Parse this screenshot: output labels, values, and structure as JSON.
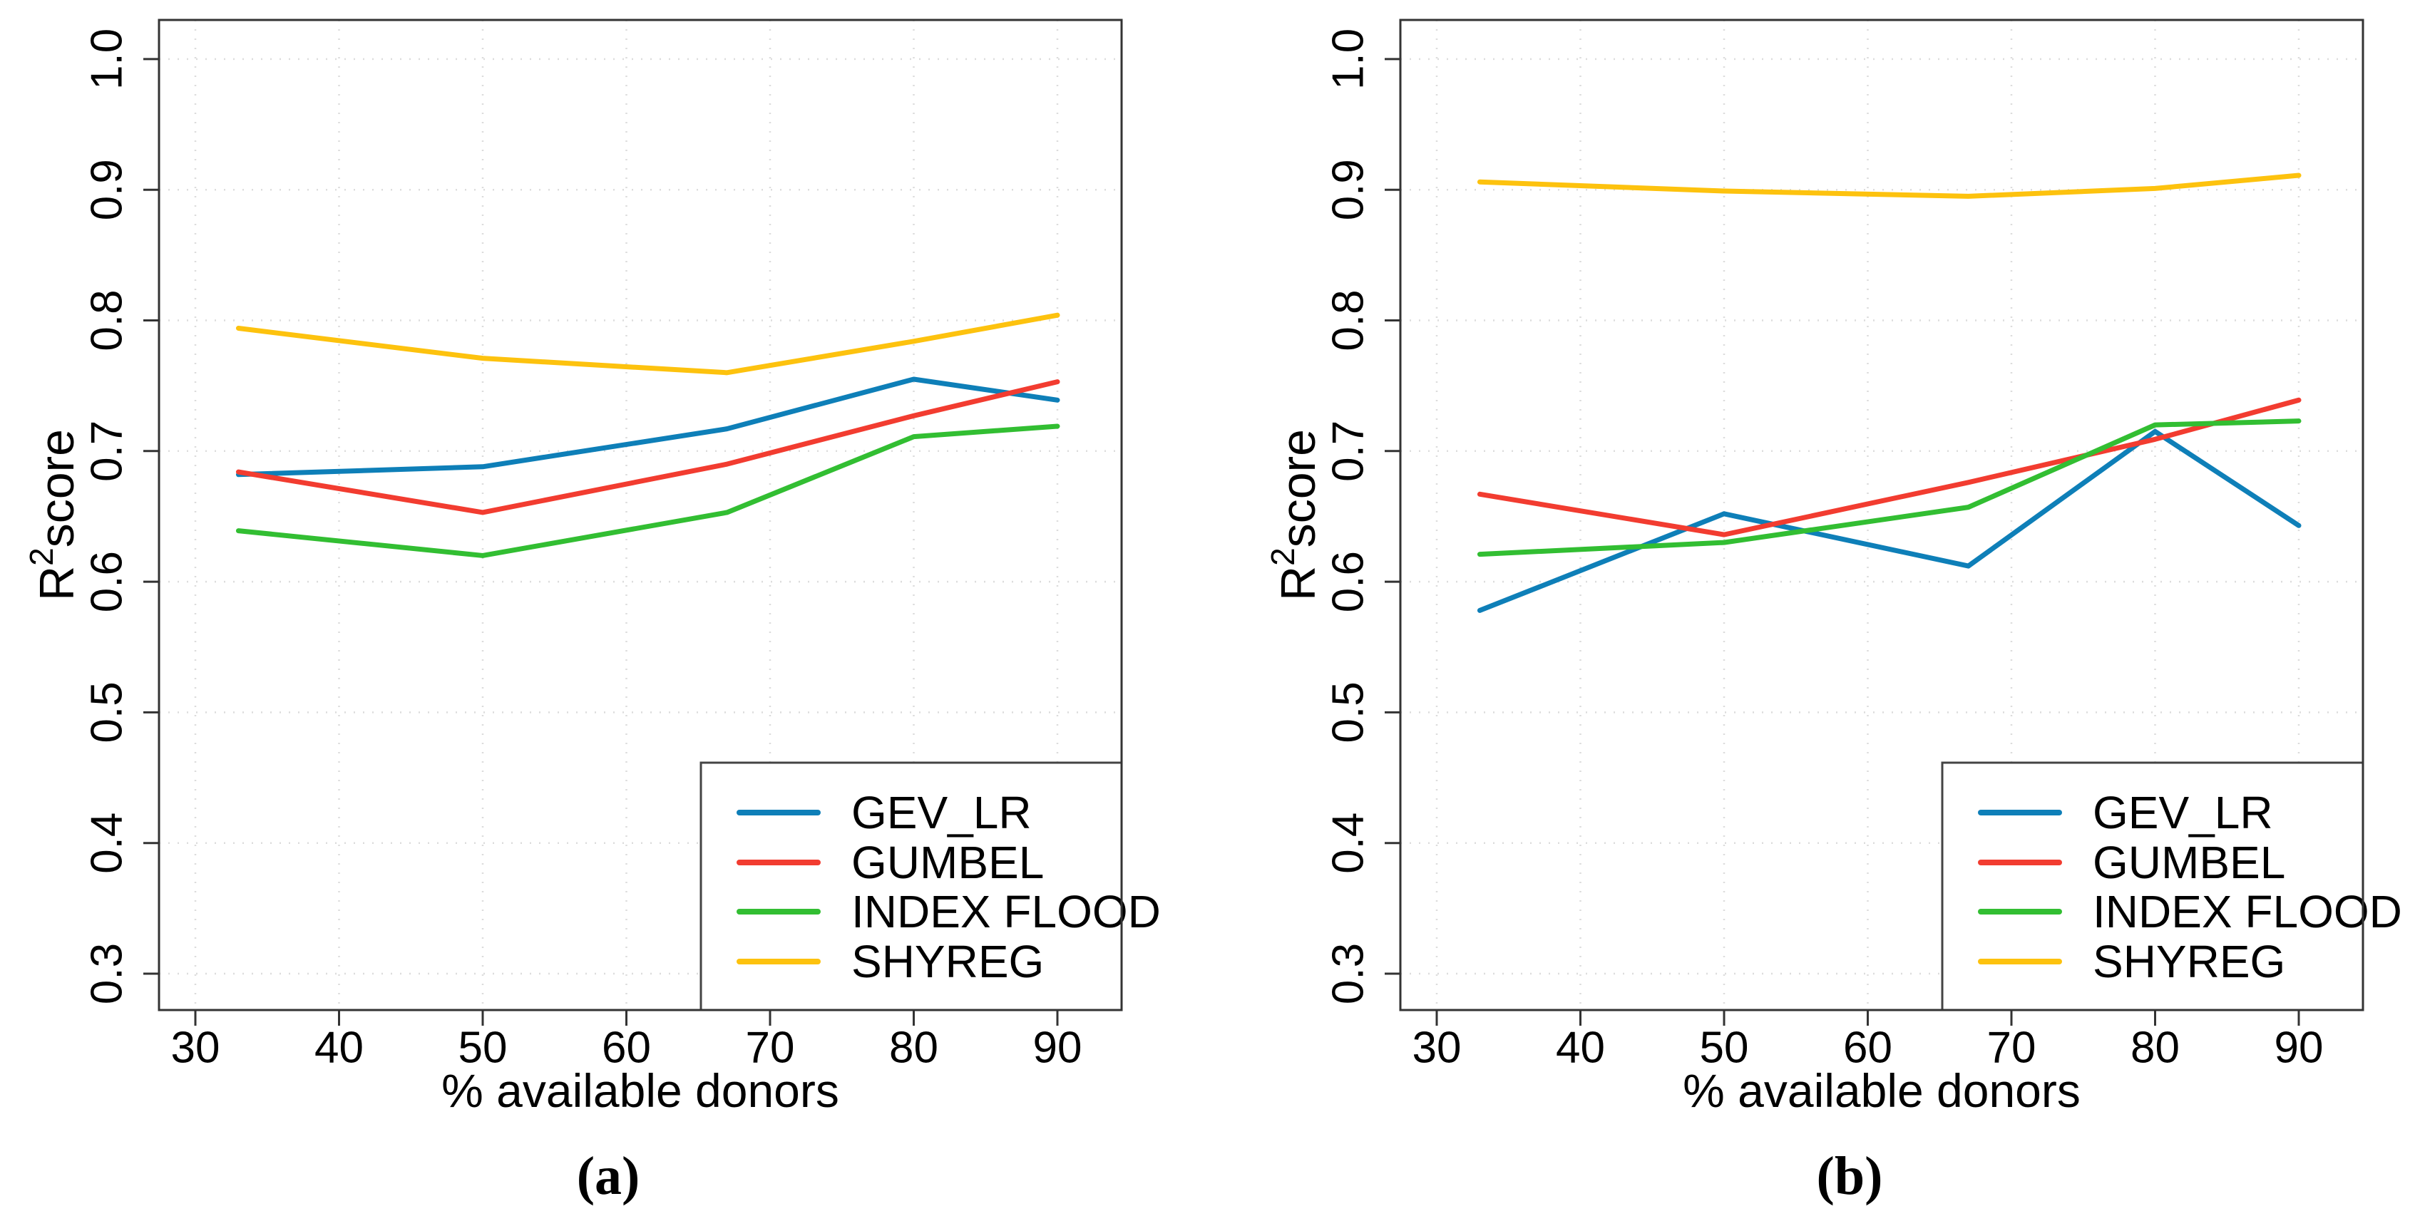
{
  "figure": {
    "background": "#ffffff",
    "axis_color": "#333333",
    "grid_color": "#dcdcdc",
    "legend_border_color": "#444444",
    "xlabel": "% available donors",
    "ylabel": {
      "base": "R",
      "sup": "2",
      "rest": "score"
    },
    "captions": [
      "(a)",
      "(b)"
    ],
    "yticks": [
      "1.0",
      "0.9",
      "0.8",
      "0.7",
      "0.6",
      "0.5",
      "0.4",
      "0.3"
    ],
    "xticks": [
      "30",
      "40",
      "50",
      "60",
      "70",
      "80",
      "90"
    ]
  },
  "chart_data": [
    {
      "type": "line",
      "panel": "a",
      "title": "",
      "xlabel": "% available donors",
      "ylabel": "R2 score",
      "x": [
        33,
        50,
        67,
        80,
        90
      ],
      "xticks": [
        30,
        40,
        50,
        60,
        70,
        80,
        90
      ],
      "yticks": [
        0.3,
        0.4,
        0.5,
        0.6,
        0.7,
        0.8,
        0.9,
        1.0
      ],
      "xlim": [
        27.5,
        94.5
      ],
      "ylim": [
        0.272,
        1.03
      ],
      "grid": true,
      "legend_position": "bottom-right",
      "series": [
        {
          "name": "GEV_LR",
          "color": "#0e7fb8",
          "values": [
            0.682,
            0.688,
            0.717,
            0.755,
            0.739
          ]
        },
        {
          "name": "GUMBEL",
          "color": "#f23c30",
          "values": [
            0.684,
            0.653,
            0.69,
            0.727,
            0.753
          ]
        },
        {
          "name": "INDEX FLOOD",
          "color": "#32be32",
          "values": [
            0.639,
            0.62,
            0.653,
            0.711,
            0.719
          ]
        },
        {
          "name": "SHYREG",
          "color": "#fdc20e",
          "values": [
            0.794,
            0.771,
            0.76,
            0.784,
            0.804
          ]
        }
      ]
    },
    {
      "type": "line",
      "panel": "b",
      "title": "",
      "xlabel": "% available donors",
      "ylabel": "R2 score",
      "x": [
        33,
        50,
        67,
        80,
        90
      ],
      "xticks": [
        30,
        40,
        50,
        60,
        70,
        80,
        90
      ],
      "yticks": [
        0.3,
        0.4,
        0.5,
        0.6,
        0.7,
        0.8,
        0.9,
        1.0
      ],
      "xlim": [
        27.5,
        94.5
      ],
      "ylim": [
        0.272,
        1.03
      ],
      "grid": true,
      "legend_position": "bottom-right",
      "series": [
        {
          "name": "GEV_LR",
          "color": "#0e7fb8",
          "values": [
            0.578,
            0.652,
            0.612,
            0.715,
            0.643
          ]
        },
        {
          "name": "GUMBEL",
          "color": "#f23c30",
          "values": [
            0.667,
            0.636,
            0.676,
            0.709,
            0.739
          ]
        },
        {
          "name": "INDEX FLOOD",
          "color": "#32be32",
          "values": [
            0.621,
            0.63,
            0.657,
            0.72,
            0.723
          ]
        },
        {
          "name": "SHYREG",
          "color": "#fdc20e",
          "values": [
            0.906,
            0.899,
            0.895,
            0.901,
            0.911
          ]
        }
      ]
    }
  ]
}
